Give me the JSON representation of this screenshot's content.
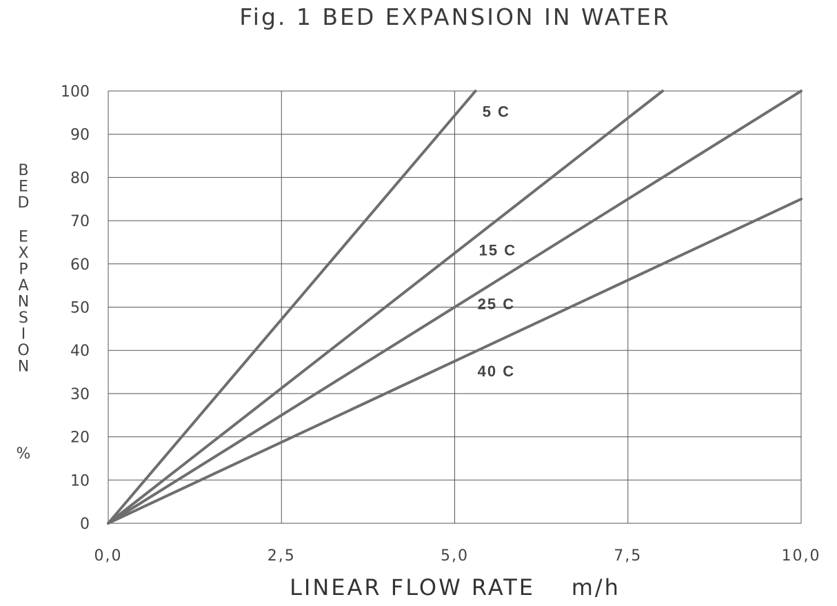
{
  "chart_data": {
    "type": "line",
    "title": "Fig. 1  BED EXPANSION IN WATER",
    "xlabel": "LINEAR FLOW RATE    m/h",
    "ylabel": "BED EXPANSION",
    "ylabel_unit": "%",
    "xlim": [
      0,
      10
    ],
    "ylim": [
      0,
      100
    ],
    "x_ticks": [
      0,
      2.5,
      5,
      7.5,
      10
    ],
    "x_tick_labels": [
      "0,0",
      "2,5",
      "5,0",
      "7,5",
      "10,0"
    ],
    "y_ticks": [
      0,
      10,
      20,
      30,
      40,
      50,
      60,
      70,
      80,
      90,
      100
    ],
    "y_tick_labels": [
      "0",
      "10",
      "20",
      "30",
      "40",
      "50",
      "60",
      "70",
      "80",
      "90",
      "100"
    ],
    "grid": true,
    "series": [
      {
        "name": "5 C",
        "x": [
          0,
          5.3
        ],
        "y": [
          0,
          100
        ]
      },
      {
        "name": "15 C",
        "x": [
          0,
          8.0
        ],
        "y": [
          0,
          100
        ]
      },
      {
        "name": "25 C",
        "x": [
          0,
          10.0
        ],
        "y": [
          0,
          100
        ]
      },
      {
        "name": "40 C",
        "x": [
          0,
          10.0
        ],
        "y": [
          0,
          75
        ]
      }
    ],
    "series_label_anchors": [
      {
        "text": "5 C",
        "x": 5.4,
        "y": 94
      },
      {
        "text": "15 C",
        "x": 5.35,
        "y": 62
      },
      {
        "text": "25 C",
        "x": 5.33,
        "y": 49.5
      },
      {
        "text": "40 C",
        "x": 5.33,
        "y": 34
      }
    ],
    "colors": {
      "series": "#6e6e6e",
      "grid": "#555555",
      "text": "#333333"
    }
  }
}
